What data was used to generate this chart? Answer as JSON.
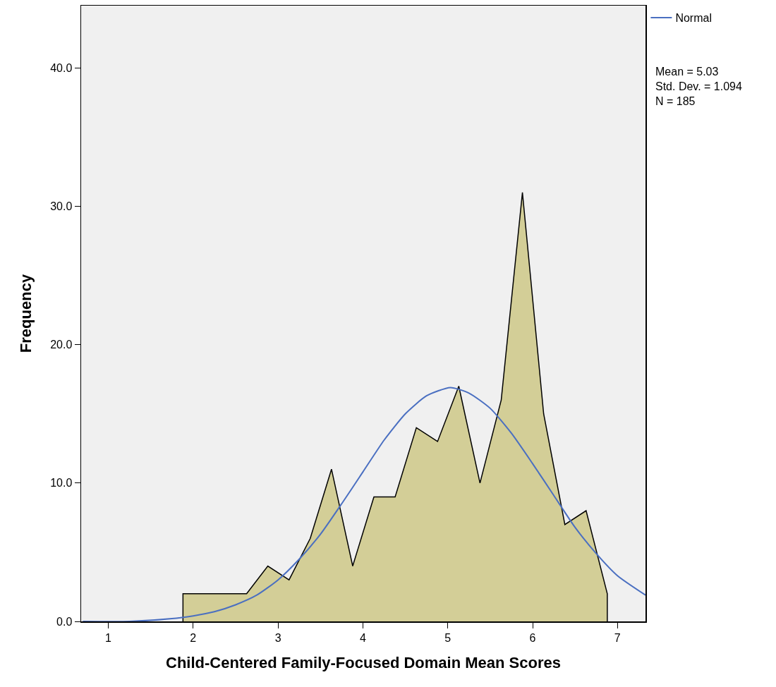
{
  "chart_data": {
    "type": "area",
    "xlabel": "Child-Centered Family-Focused Domain Mean Scores",
    "ylabel": "Frequency",
    "annotations": [
      "Mean = 5.03",
      "Std. Dev. = 1.094",
      "N = 185"
    ],
    "xlim": [
      0.68,
      7.33
    ],
    "xticks": [
      1,
      2,
      3,
      4,
      5,
      6,
      7
    ],
    "ylim": [
      0,
      44.5
    ],
    "yticks": [
      {
        "value": 0,
        "label": "0.0"
      },
      {
        "value": 10,
        "label": "10.0"
      },
      {
        "value": 20,
        "label": "20.0"
      },
      {
        "value": 30,
        "label": "30.0"
      },
      {
        "value": 40,
        "label": "40.0"
      }
    ],
    "grid": false,
    "legend": "top right",
    "series": [
      {
        "color": "#d3ce97",
        "x": [
          1.88,
          1.88,
          2.13,
          2.38,
          2.63,
          2.88,
          3.13,
          3.38,
          3.63,
          3.88,
          4.13,
          4.38,
          4.63,
          4.88,
          5.13,
          5.38,
          5.63,
          5.88,
          6.13,
          6.38,
          6.63,
          6.88,
          6.88
        ],
        "values": [
          0,
          2,
          2,
          2,
          2,
          4,
          3,
          6,
          11,
          4,
          9,
          9,
          14,
          13,
          17,
          10,
          16,
          31,
          15,
          7,
          8,
          2,
          0
        ]
      },
      {
        "type": "line",
        "name": "Normal",
        "color": "#4a6fc1",
        "x": [
          0.7,
          1.25,
          1.75,
          2.0,
          2.25,
          2.5,
          2.75,
          3.0,
          3.25,
          3.5,
          3.75,
          4.0,
          4.25,
          4.5,
          4.75,
          5.03,
          5.25,
          5.5,
          5.75,
          6.0,
          6.25,
          6.5,
          6.75,
          7.0,
          7.33
        ],
        "values": [
          0,
          0,
          0.2,
          0.4,
          0.7,
          1.2,
          1.9,
          3.0,
          4.5,
          6.3,
          8.5,
          10.8,
          13.1,
          15.0,
          16.3,
          16.9,
          16.5,
          15.4,
          13.6,
          11.4,
          9.1,
          6.8,
          4.9,
          3.3,
          1.9
        ]
      }
    ]
  }
}
